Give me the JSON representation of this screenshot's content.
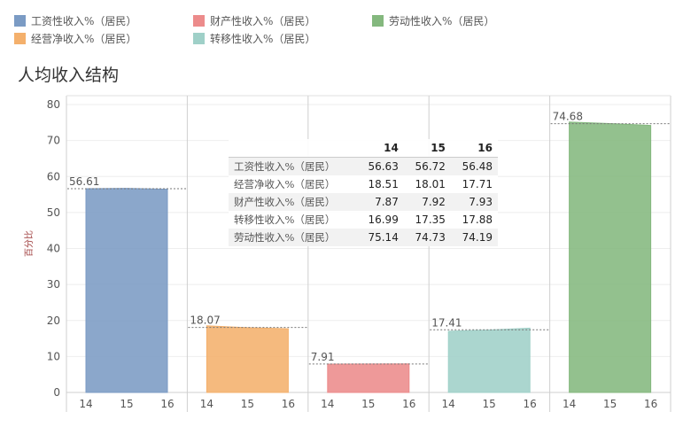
{
  "title": "人均收入结构",
  "legend": [
    {
      "label": "工资性收入%（居民）",
      "color": "#7b9bc4"
    },
    {
      "label": "财产性收入%（居民）",
      "color": "#ec8b8b"
    },
    {
      "label": "劳动性收入%（居民）",
      "color": "#84b87e"
    },
    {
      "label": "经营净收入%（居民）",
      "color": "#f4b06c"
    },
    {
      "label": "转移性收入%（居民）",
      "color": "#9fd0c8"
    }
  ],
  "chart_data": {
    "type": "area",
    "ylabel": "百分比",
    "ylim": [
      0,
      80
    ],
    "yticks": [
      0,
      10,
      20,
      30,
      40,
      50,
      60,
      70,
      80
    ],
    "categories": [
      "14",
      "15",
      "16"
    ],
    "series": [
      {
        "name": "工资性收入%（居民）",
        "color": "#7b9bc4",
        "values": [
          56.63,
          56.72,
          56.48
        ],
        "avg_label": "56.61"
      },
      {
        "name": "经营净收入%（居民）",
        "color": "#f4b06c",
        "values": [
          18.51,
          18.01,
          17.71
        ],
        "avg_label": "18.07"
      },
      {
        "name": "财产性收入%（居民）",
        "color": "#ec8b8b",
        "values": [
          7.87,
          7.92,
          7.93
        ],
        "avg_label": "7.91"
      },
      {
        "name": "转移性收入%（居民）",
        "color": "#9fd0c8",
        "values": [
          16.99,
          17.35,
          17.88
        ],
        "avg_label": "17.41"
      },
      {
        "name": "劳动性收入%（居民）",
        "color": "#84b87e",
        "values": [
          75.14,
          74.73,
          74.19
        ],
        "avg_label": "74.68"
      }
    ],
    "grid": true,
    "tooltip_table": {
      "columns": [
        "14",
        "15",
        "16"
      ],
      "rows": [
        {
          "label": "工资性收入%（居民）",
          "values": [
            "56.63",
            "56.72",
            "56.48"
          ]
        },
        {
          "label": "经营净收入%（居民）",
          "values": [
            "18.51",
            "18.01",
            "17.71"
          ]
        },
        {
          "label": "财产性收入%（居民）",
          "values": [
            "7.87",
            "7.92",
            "7.93"
          ]
        },
        {
          "label": "转移性收入%（居民）",
          "values": [
            "16.99",
            "17.35",
            "17.88"
          ]
        },
        {
          "label": "劳动性收入%（居民）",
          "values": [
            "75.14",
            "74.73",
            "74.19"
          ]
        }
      ]
    }
  }
}
